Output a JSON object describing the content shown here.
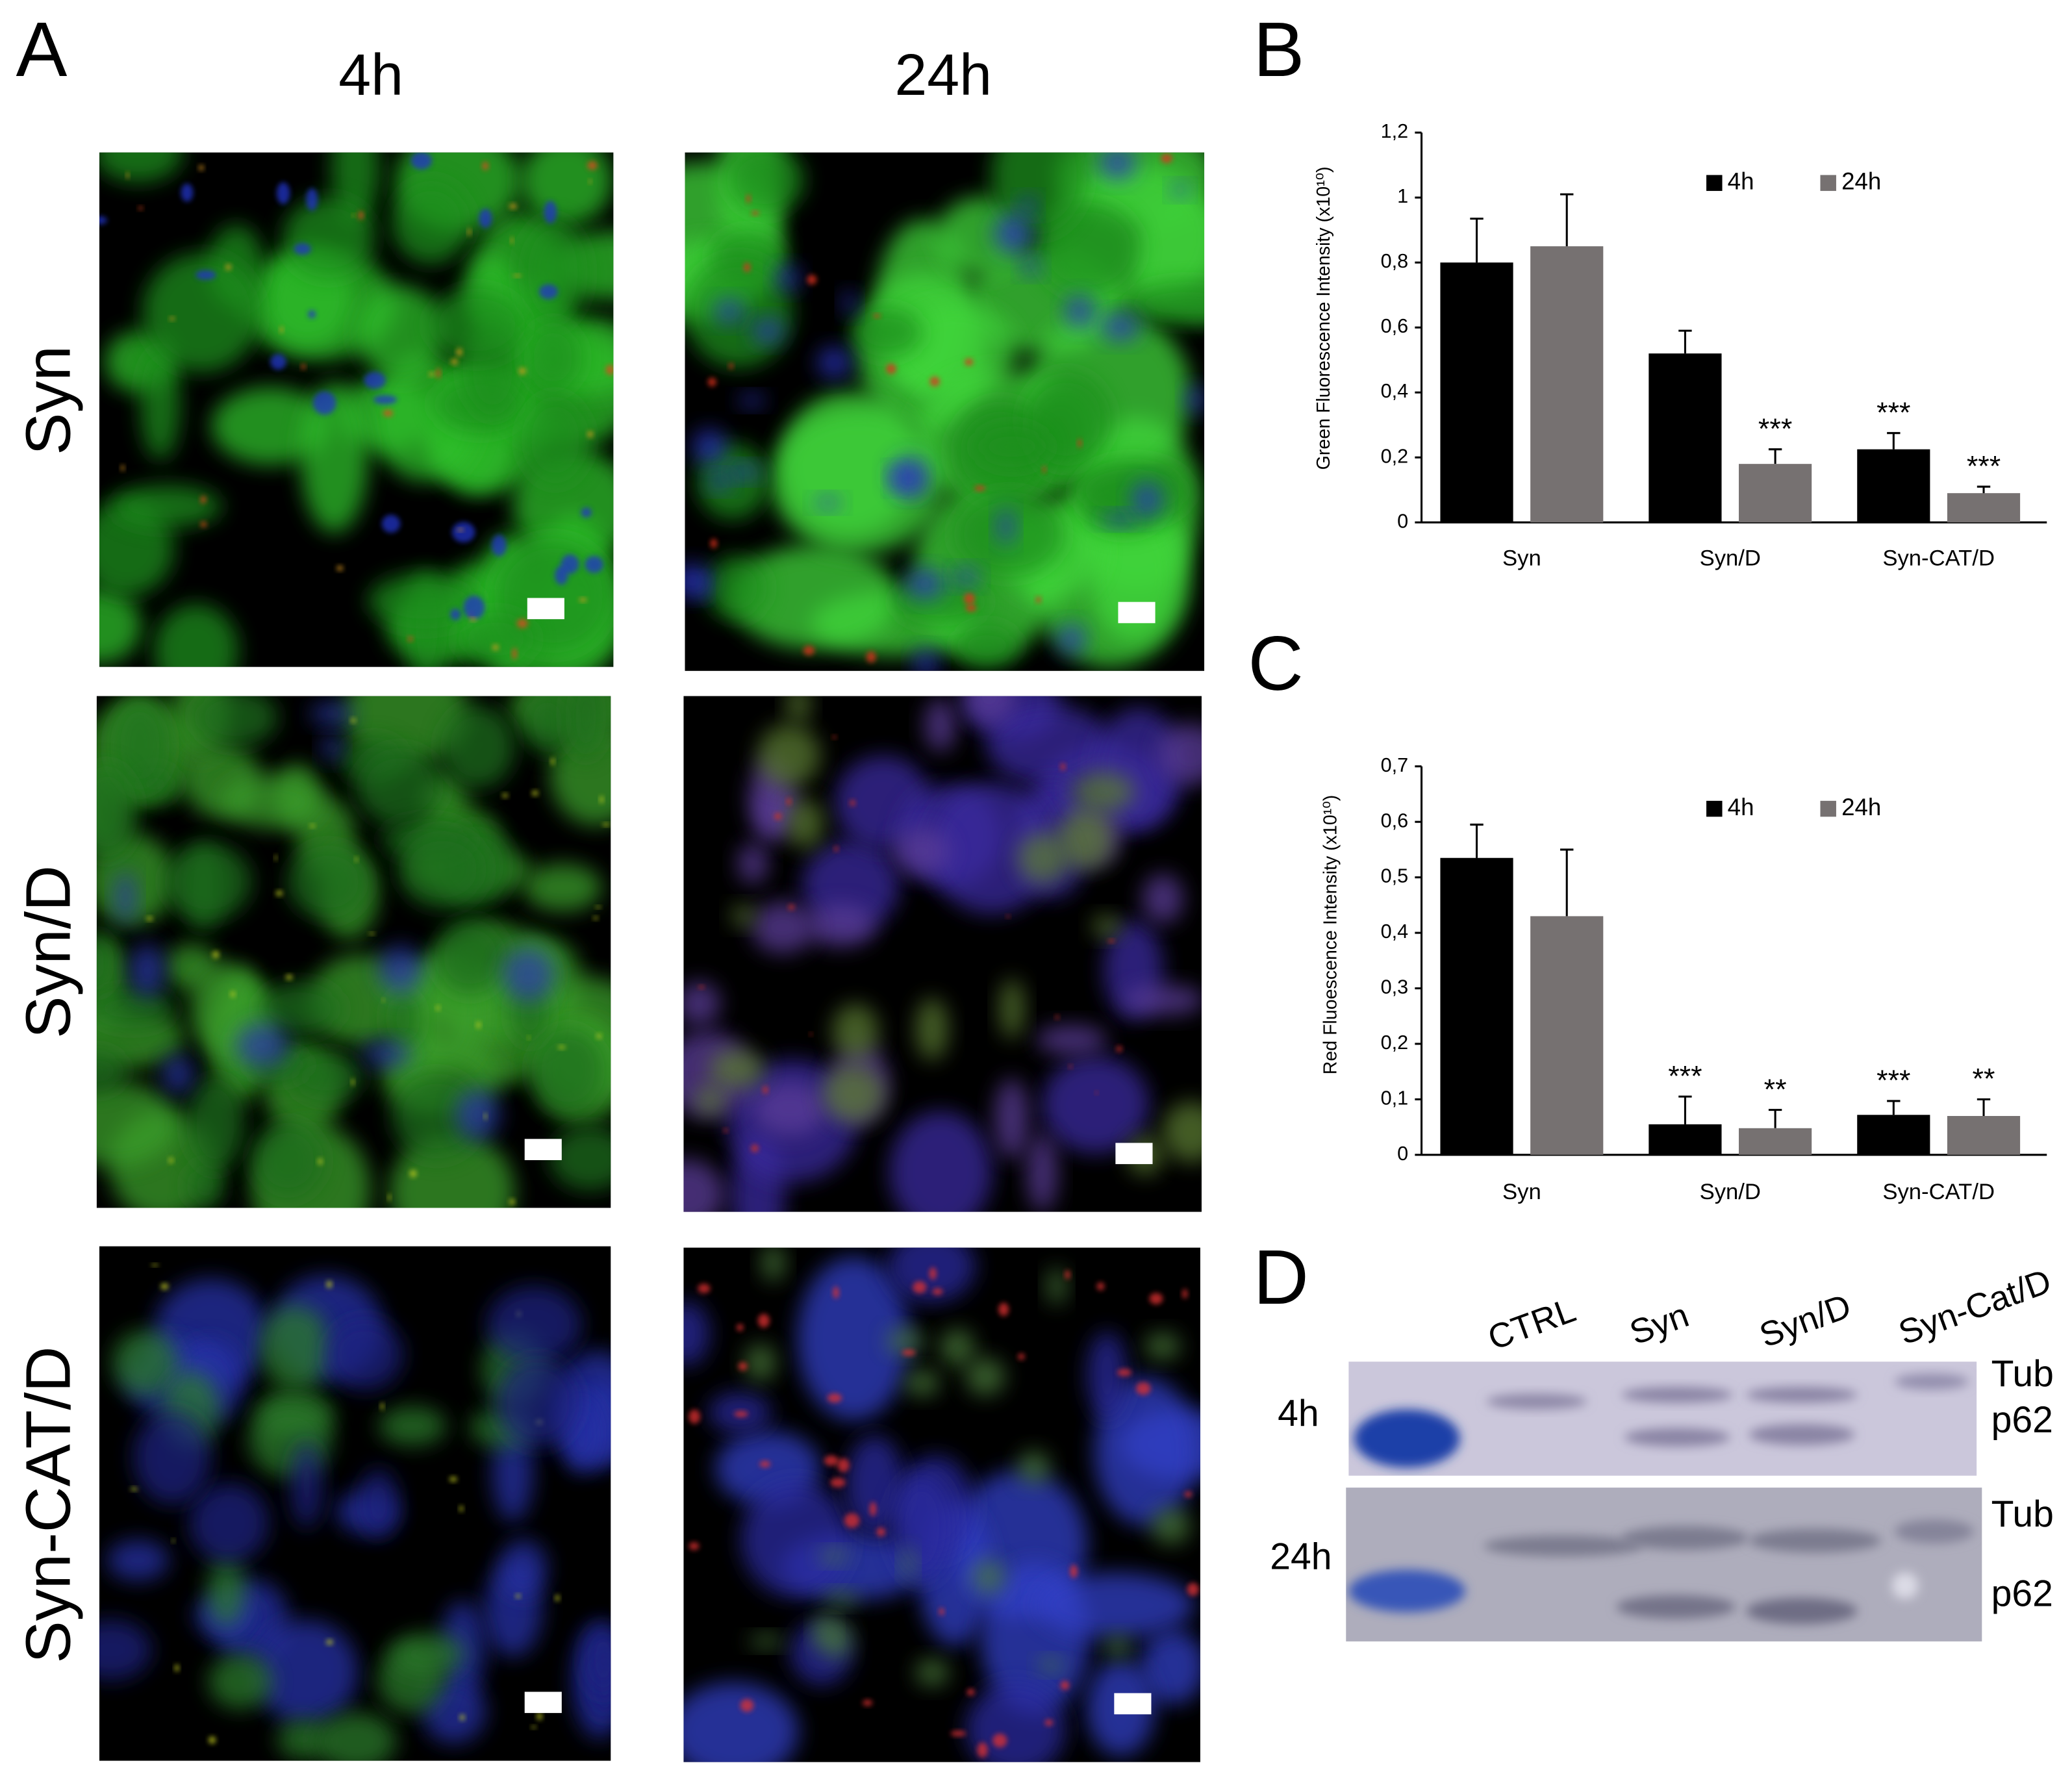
{
  "figure": {
    "panel_labels": [
      "A",
      "B",
      "C",
      "D"
    ],
    "columns": [
      "4h",
      "24h"
    ],
    "rows": [
      "Syn",
      "Syn/D",
      "Syn-CAT/D"
    ],
    "blot": {
      "lanes": [
        "CTRL",
        "Syn",
        "Syn/D",
        "Syn-Cat/D"
      ],
      "rows": [
        "4h",
        "24h"
      ],
      "bands": [
        [
          "Tub",
          "p62"
        ],
        [
          "Tub",
          "p62"
        ]
      ]
    }
  },
  "chart_data": [
    {
      "type": "bar",
      "y_label": "Green Fluorescence Intensity (x10¹⁰)",
      "categories": [
        "Syn",
        "Syn/D",
        "Syn-CAT/D"
      ],
      "series": [
        {
          "name": "4h",
          "color": "#000000",
          "values": [
            0.8,
            0.52,
            0.225
          ],
          "errors": [
            0.135,
            0.07,
            0.05
          ],
          "significance": [
            null,
            null,
            "***"
          ]
        },
        {
          "name": "24h",
          "color": "#767171",
          "values": [
            0.85,
            0.18,
            0.09
          ],
          "errors": [
            0.16,
            0.045,
            0.02
          ],
          "significance": [
            null,
            "***",
            "***"
          ]
        }
      ],
      "ylim": [
        0,
        1.2
      ],
      "yticks": [
        0,
        {
          "value": 0.2,
          "label": "0,2"
        },
        {
          "value": 0.4,
          "label": "0,4"
        },
        {
          "value": 0.6,
          "label": "0,6"
        },
        {
          "value": 0.8,
          "label": "0,8"
        },
        1,
        {
          "value": 1.2,
          "label": "1,2"
        }
      ],
      "legend": "top-right",
      "grid": false
    },
    {
      "type": "bar",
      "y_label": "Red Fluoescence Intensity  (x10¹⁰)",
      "categories": [
        "Syn",
        "Syn/D",
        "Syn-CAT/D"
      ],
      "series": [
        {
          "name": "4h",
          "color": "#000000",
          "values": [
            0.535,
            0.055,
            0.072
          ],
          "errors": [
            0.06,
            0.05,
            0.025
          ],
          "significance": [
            null,
            "***",
            "***"
          ]
        },
        {
          "name": "24h",
          "color": "#767171",
          "values": [
            0.43,
            0.048,
            0.07
          ],
          "errors": [
            0.12,
            0.033,
            0.03
          ],
          "significance": [
            null,
            "**",
            "**"
          ]
        }
      ],
      "ylim": [
        0,
        0.7
      ],
      "yticks": [
        0,
        {
          "value": 0.1,
          "label": "0,1"
        },
        {
          "value": 0.2,
          "label": "0,2"
        },
        {
          "value": 0.3,
          "label": "0,3"
        },
        {
          "value": 0.4,
          "label": "0,4"
        },
        {
          "value": 0.5,
          "label": "0,5"
        },
        {
          "value": 0.6,
          "label": "0,6"
        },
        {
          "value": 0.7,
          "label": "0,7"
        }
      ],
      "legend": "top-right",
      "grid": false
    }
  ]
}
